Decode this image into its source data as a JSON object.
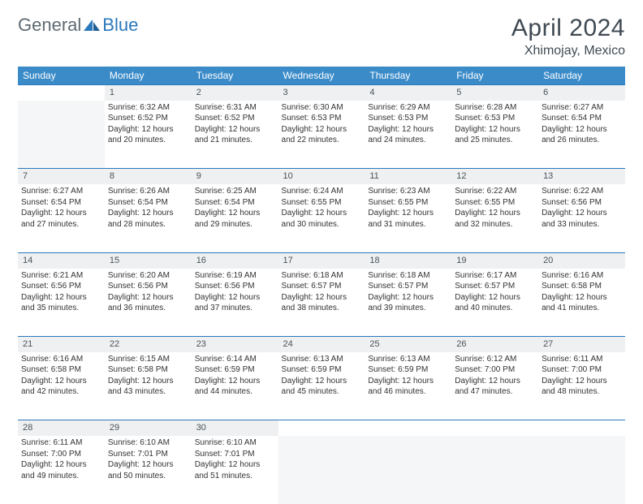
{
  "logo": {
    "part1": "General",
    "part2": "Blue"
  },
  "title": "April 2024",
  "location": "Xhimojay, Mexico",
  "colors": {
    "header_bg": "#3b8bc9",
    "header_text": "#ffffff",
    "daynum_bg": "#eef0f1",
    "border_top": "#2b78bd",
    "logo_gray": "#5f6b74",
    "logo_blue": "#2b78bd",
    "title_color": "#404a52"
  },
  "weekdays": [
    "Sunday",
    "Monday",
    "Tuesday",
    "Wednesday",
    "Thursday",
    "Friday",
    "Saturday"
  ],
  "weeks": [
    {
      "nums": [
        "",
        "1",
        "2",
        "3",
        "4",
        "5",
        "6"
      ],
      "cells": [
        null,
        {
          "sunrise": "Sunrise: 6:32 AM",
          "sunset": "Sunset: 6:52 PM",
          "d1": "Daylight: 12 hours",
          "d2": "and 20 minutes."
        },
        {
          "sunrise": "Sunrise: 6:31 AM",
          "sunset": "Sunset: 6:52 PM",
          "d1": "Daylight: 12 hours",
          "d2": "and 21 minutes."
        },
        {
          "sunrise": "Sunrise: 6:30 AM",
          "sunset": "Sunset: 6:53 PM",
          "d1": "Daylight: 12 hours",
          "d2": "and 22 minutes."
        },
        {
          "sunrise": "Sunrise: 6:29 AM",
          "sunset": "Sunset: 6:53 PM",
          "d1": "Daylight: 12 hours",
          "d2": "and 24 minutes."
        },
        {
          "sunrise": "Sunrise: 6:28 AM",
          "sunset": "Sunset: 6:53 PM",
          "d1": "Daylight: 12 hours",
          "d2": "and 25 minutes."
        },
        {
          "sunrise": "Sunrise: 6:27 AM",
          "sunset": "Sunset: 6:54 PM",
          "d1": "Daylight: 12 hours",
          "d2": "and 26 minutes."
        }
      ]
    },
    {
      "nums": [
        "7",
        "8",
        "9",
        "10",
        "11",
        "12",
        "13"
      ],
      "cells": [
        {
          "sunrise": "Sunrise: 6:27 AM",
          "sunset": "Sunset: 6:54 PM",
          "d1": "Daylight: 12 hours",
          "d2": "and 27 minutes."
        },
        {
          "sunrise": "Sunrise: 6:26 AM",
          "sunset": "Sunset: 6:54 PM",
          "d1": "Daylight: 12 hours",
          "d2": "and 28 minutes."
        },
        {
          "sunrise": "Sunrise: 6:25 AM",
          "sunset": "Sunset: 6:54 PM",
          "d1": "Daylight: 12 hours",
          "d2": "and 29 minutes."
        },
        {
          "sunrise": "Sunrise: 6:24 AM",
          "sunset": "Sunset: 6:55 PM",
          "d1": "Daylight: 12 hours",
          "d2": "and 30 minutes."
        },
        {
          "sunrise": "Sunrise: 6:23 AM",
          "sunset": "Sunset: 6:55 PM",
          "d1": "Daylight: 12 hours",
          "d2": "and 31 minutes."
        },
        {
          "sunrise": "Sunrise: 6:22 AM",
          "sunset": "Sunset: 6:55 PM",
          "d1": "Daylight: 12 hours",
          "d2": "and 32 minutes."
        },
        {
          "sunrise": "Sunrise: 6:22 AM",
          "sunset": "Sunset: 6:56 PM",
          "d1": "Daylight: 12 hours",
          "d2": "and 33 minutes."
        }
      ]
    },
    {
      "nums": [
        "14",
        "15",
        "16",
        "17",
        "18",
        "19",
        "20"
      ],
      "cells": [
        {
          "sunrise": "Sunrise: 6:21 AM",
          "sunset": "Sunset: 6:56 PM",
          "d1": "Daylight: 12 hours",
          "d2": "and 35 minutes."
        },
        {
          "sunrise": "Sunrise: 6:20 AM",
          "sunset": "Sunset: 6:56 PM",
          "d1": "Daylight: 12 hours",
          "d2": "and 36 minutes."
        },
        {
          "sunrise": "Sunrise: 6:19 AM",
          "sunset": "Sunset: 6:56 PM",
          "d1": "Daylight: 12 hours",
          "d2": "and 37 minutes."
        },
        {
          "sunrise": "Sunrise: 6:18 AM",
          "sunset": "Sunset: 6:57 PM",
          "d1": "Daylight: 12 hours",
          "d2": "and 38 minutes."
        },
        {
          "sunrise": "Sunrise: 6:18 AM",
          "sunset": "Sunset: 6:57 PM",
          "d1": "Daylight: 12 hours",
          "d2": "and 39 minutes."
        },
        {
          "sunrise": "Sunrise: 6:17 AM",
          "sunset": "Sunset: 6:57 PM",
          "d1": "Daylight: 12 hours",
          "d2": "and 40 minutes."
        },
        {
          "sunrise": "Sunrise: 6:16 AM",
          "sunset": "Sunset: 6:58 PM",
          "d1": "Daylight: 12 hours",
          "d2": "and 41 minutes."
        }
      ]
    },
    {
      "nums": [
        "21",
        "22",
        "23",
        "24",
        "25",
        "26",
        "27"
      ],
      "cells": [
        {
          "sunrise": "Sunrise: 6:16 AM",
          "sunset": "Sunset: 6:58 PM",
          "d1": "Daylight: 12 hours",
          "d2": "and 42 minutes."
        },
        {
          "sunrise": "Sunrise: 6:15 AM",
          "sunset": "Sunset: 6:58 PM",
          "d1": "Daylight: 12 hours",
          "d2": "and 43 minutes."
        },
        {
          "sunrise": "Sunrise: 6:14 AM",
          "sunset": "Sunset: 6:59 PM",
          "d1": "Daylight: 12 hours",
          "d2": "and 44 minutes."
        },
        {
          "sunrise": "Sunrise: 6:13 AM",
          "sunset": "Sunset: 6:59 PM",
          "d1": "Daylight: 12 hours",
          "d2": "and 45 minutes."
        },
        {
          "sunrise": "Sunrise: 6:13 AM",
          "sunset": "Sunset: 6:59 PM",
          "d1": "Daylight: 12 hours",
          "d2": "and 46 minutes."
        },
        {
          "sunrise": "Sunrise: 6:12 AM",
          "sunset": "Sunset: 7:00 PM",
          "d1": "Daylight: 12 hours",
          "d2": "and 47 minutes."
        },
        {
          "sunrise": "Sunrise: 6:11 AM",
          "sunset": "Sunset: 7:00 PM",
          "d1": "Daylight: 12 hours",
          "d2": "and 48 minutes."
        }
      ]
    },
    {
      "nums": [
        "28",
        "29",
        "30",
        "",
        "",
        "",
        ""
      ],
      "cells": [
        {
          "sunrise": "Sunrise: 6:11 AM",
          "sunset": "Sunset: 7:00 PM",
          "d1": "Daylight: 12 hours",
          "d2": "and 49 minutes."
        },
        {
          "sunrise": "Sunrise: 6:10 AM",
          "sunset": "Sunset: 7:01 PM",
          "d1": "Daylight: 12 hours",
          "d2": "and 50 minutes."
        },
        {
          "sunrise": "Sunrise: 6:10 AM",
          "sunset": "Sunset: 7:01 PM",
          "d1": "Daylight: 12 hours",
          "d2": "and 51 minutes."
        },
        null,
        null,
        null,
        null
      ]
    }
  ]
}
